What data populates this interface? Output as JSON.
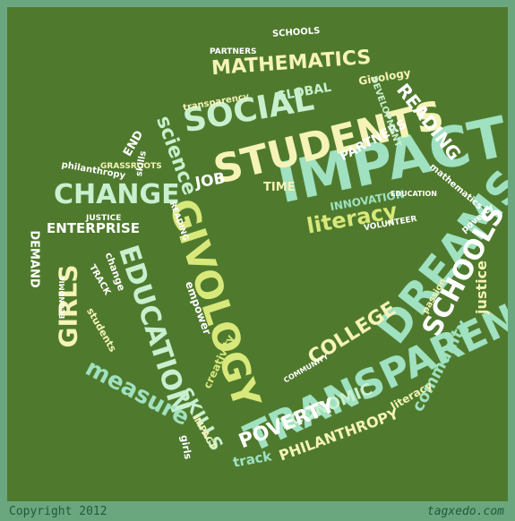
{
  "colors": {
    "background": "#4f7a2d",
    "frame": "#6aa77f",
    "palette": [
      "#f6f3b8",
      "#c8f0cf",
      "#9fe1c0",
      "#d8e87a",
      "#ffffff"
    ]
  },
  "words": {
    "impact": "IMPACT",
    "students": "STUDENTS",
    "social": "SOCIAL",
    "mathematics": "MATHEMATICS",
    "dreams": "DREAMS",
    "schools": "SCHOOLS",
    "transparency": "TRANSPARENCY",
    "change": "CHANGE",
    "givology": "GIVOLOGY",
    "education": "EDUCATION",
    "girls": "GIRLS",
    "measure": "measure",
    "skills": "SKILLS",
    "science": "science",
    "literacy": "literacy",
    "college": "COLLEGE",
    "economic": "ECONOMIC",
    "poverty": "POVERTY",
    "philanthropy": "PHILANTHROPY",
    "community": "community",
    "reading": "READING",
    "enterprise": "ENTERPRISE",
    "demand": "DEMAND",
    "job": "JOB",
    "justice": "justice",
    "track": "track",
    "global": "GLOBAL",
    "partners": "PARTNERS",
    "innovation": "INNOVATION",
    "time": "TIME",
    "end": "END",
    "schools_small": "SCHOOLS",
    "givology_small": "Givology",
    "development": "DEVELOPMENT",
    "transparency_small": "transparency",
    "philanthropy_small": "philanthropy",
    "grassroots": "GRASSROOTS",
    "students_small": "students",
    "empower": "empower",
    "creativity": "creativity",
    "change_small": "change",
    "education_small": "EDUCATION",
    "poverty_small": "poverty",
    "passion": "passion",
    "mathematics_small": "mathematics",
    "volunteer": "VOLUNTEER",
    "literacy_small": "literacy",
    "girls_small": "girls",
    "impact_small": "IMPACT",
    "track_small": "TRACK",
    "skills_small": "skills",
    "economic_small": "ECONOMIC",
    "reading_small": "READING",
    "partners_small": "PARTNERS",
    "justice_small": "JUSTICE",
    "community_small": "COMMUNITY"
  },
  "footer": {
    "copyright": "Copyright 2012",
    "site": "tagxedo.com"
  }
}
